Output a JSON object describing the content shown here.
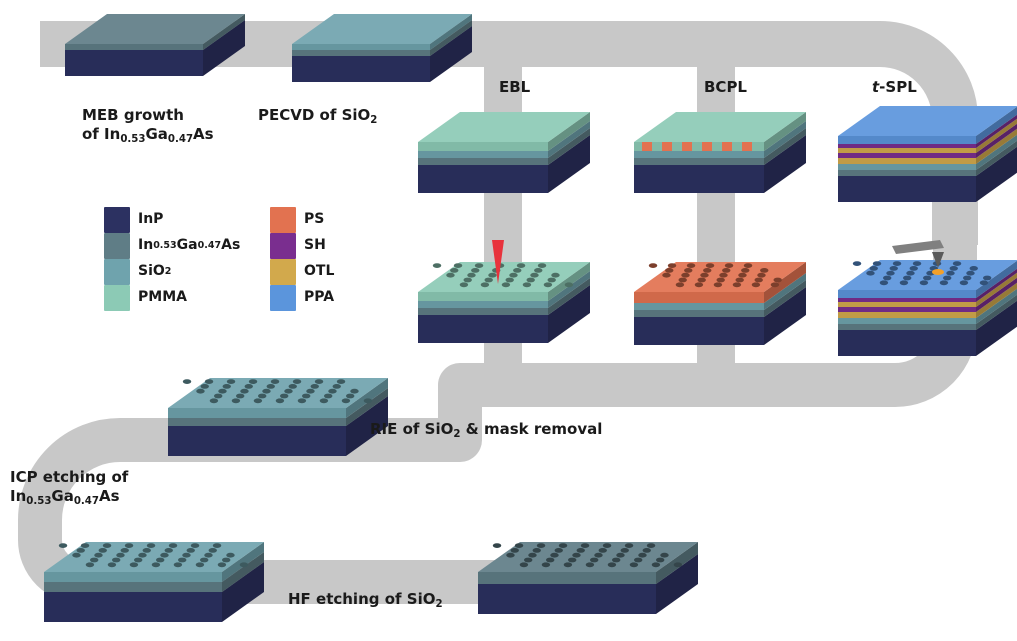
{
  "colors": {
    "track": "#c8c8c8",
    "InP": "#2c3161",
    "InGaAs": "#5f7d86",
    "SiO2": "#6fa3ad",
    "PMMA": "#8ccab5",
    "PS": "#e27250",
    "SH": "#7a2e8f",
    "OTL": "#d2a94c",
    "PPA": "#5b95dc",
    "beam": "#e8323c",
    "tip": "#808080"
  },
  "steps": {
    "meb": {
      "line1": "MEB growth",
      "line2_pre": "of In",
      "sub1": "0.53",
      "mid": "Ga",
      "sub2": "0.47",
      "end": "As"
    },
    "pecvd": {
      "pre": "PECVD of SiO",
      "sub": "2"
    },
    "ebl": "EBL",
    "bcpl": "BCPL",
    "tspl": {
      "italic": "t",
      "rest": "-SPL"
    },
    "rie": {
      "pre": "RIE of SiO",
      "sub": "2",
      "post": " & mask removal"
    },
    "icp": {
      "line1": "ICP etching of",
      "line2_pre": "In",
      "sub1": "0.53",
      "mid": "Ga",
      "sub2": "0.47",
      "end": "As"
    },
    "hf": {
      "pre": "HF etching of SiO",
      "sub": "2"
    }
  },
  "legend": [
    {
      "key": "InP",
      "label": "InP",
      "color": "#2c3161"
    },
    {
      "key": "InGaAs",
      "label_pre": "In",
      "sub1": "0.53",
      "mid": "Ga",
      "sub2": "0.47",
      "end": "As",
      "color": "#5f7d86"
    },
    {
      "key": "SiO2",
      "label_pre": "SiO",
      "sub1": "2",
      "color": "#6fa3ad"
    },
    {
      "key": "PMMA",
      "label": "PMMA",
      "color": "#8ccab5"
    },
    {
      "key": "PS",
      "label": "PS",
      "color": "#e27250"
    },
    {
      "key": "SH",
      "label": "SH",
      "color": "#7a2e8f"
    },
    {
      "key": "OTL",
      "label": "OTL",
      "color": "#d2a94c"
    },
    {
      "key": "PPA",
      "label": "PPA",
      "color": "#5b95dc"
    }
  ]
}
